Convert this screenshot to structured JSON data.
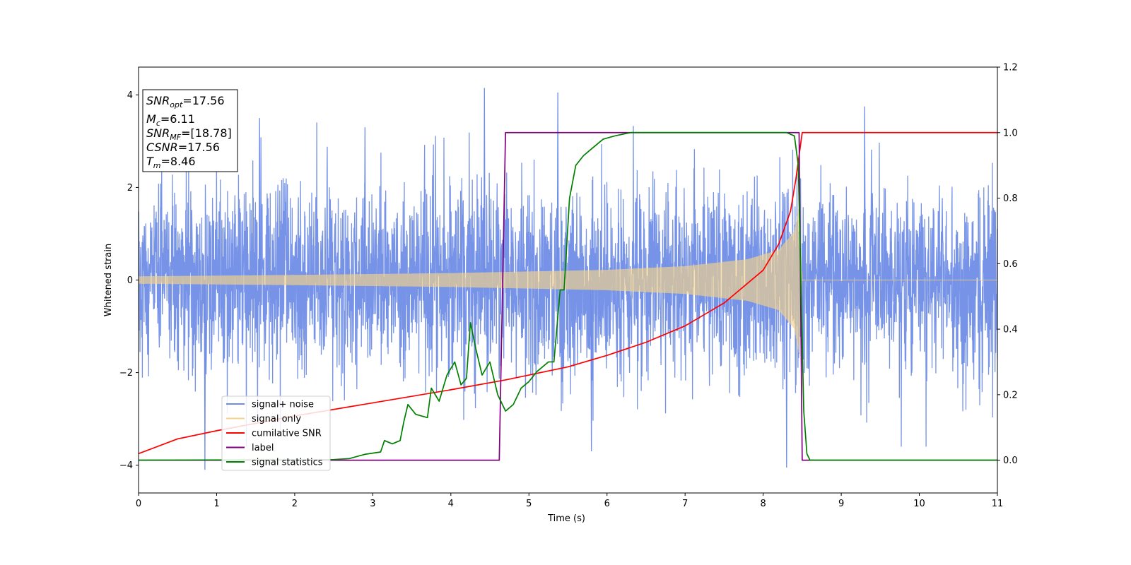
{
  "chart_data": {
    "type": "line",
    "xlabel": "Time (s)",
    "ylabel": "Whitened strain",
    "xlim": [
      0,
      11
    ],
    "ylim": [
      -4.6,
      4.6
    ],
    "y2lim": [
      -0.1,
      1.2
    ],
    "x_ticks": [
      "0",
      "1",
      "2",
      "3",
      "4",
      "5",
      "6",
      "7",
      "8",
      "9",
      "10",
      "11"
    ],
    "y_ticks": [
      "−4",
      "−2",
      "0",
      "2",
      "4"
    ],
    "y2_ticks": [
      "0.0",
      "0.2",
      "0.4",
      "0.6",
      "0.8",
      "1.0",
      "1.2"
    ],
    "legend_position": "lower-left",
    "series": [
      {
        "name": "signal+ noise",
        "axis": "left",
        "color": "#6f8de6",
        "style": "noise",
        "noise_sigma": 1.0,
        "extremes": [
          {
            "x": 0.85,
            "y": -4.1
          },
          {
            "x": 4.43,
            "y": 4.15
          },
          {
            "x": 5.37,
            "y": 4.05
          },
          {
            "x": 5.8,
            "y": -3.7
          },
          {
            "x": 8.3,
            "y": -4.05
          },
          {
            "x": 9.3,
            "y": 3.75
          },
          {
            "x": 2.9,
            "y": 3.3
          },
          {
            "x": 1.55,
            "y": 3.5
          }
        ]
      },
      {
        "name": "signal only",
        "axis": "left",
        "color": "#f5d28a",
        "style": "chirp",
        "envelope": [
          {
            "x": 0,
            "y": 0.08
          },
          {
            "x": 2,
            "y": 0.11
          },
          {
            "x": 4,
            "y": 0.15
          },
          {
            "x": 6,
            "y": 0.22
          },
          {
            "x": 7,
            "y": 0.3
          },
          {
            "x": 7.8,
            "y": 0.45
          },
          {
            "x": 8.2,
            "y": 0.65
          },
          {
            "x": 8.4,
            "y": 1.05
          },
          {
            "x": 8.46,
            "y": 1.6
          },
          {
            "x": 8.5,
            "y": 0.0
          },
          {
            "x": 11,
            "y": 0.0
          }
        ]
      },
      {
        "name": "cumilative SNR",
        "axis": "right",
        "color": "#ff0000",
        "points": [
          [
            0,
            0.02
          ],
          [
            0.5,
            0.065
          ],
          [
            1,
            0.09
          ],
          [
            2,
            0.135
          ],
          [
            3,
            0.175
          ],
          [
            4,
            0.215
          ],
          [
            4.7,
            0.245
          ],
          [
            5,
            0.26
          ],
          [
            5.5,
            0.285
          ],
          [
            6,
            0.32
          ],
          [
            6.5,
            0.36
          ],
          [
            7,
            0.41
          ],
          [
            7.5,
            0.48
          ],
          [
            8,
            0.58
          ],
          [
            8.2,
            0.66
          ],
          [
            8.35,
            0.76
          ],
          [
            8.42,
            0.86
          ],
          [
            8.46,
            0.93
          ],
          [
            8.5,
            1.0
          ],
          [
            11,
            1.0
          ]
        ]
      },
      {
        "name": "label",
        "axis": "right",
        "color": "#800080",
        "points": [
          [
            0,
            0.0
          ],
          [
            4.62,
            0.0
          ],
          [
            4.7,
            1.0
          ],
          [
            8.46,
            1.0
          ],
          [
            8.5,
            0.0
          ],
          [
            11,
            0.0
          ]
        ]
      },
      {
        "name": "signal statistics",
        "axis": "right",
        "color": "#008000",
        "points": [
          [
            0,
            0.0
          ],
          [
            2.5,
            0.002
          ],
          [
            2.7,
            0.005
          ],
          [
            2.9,
            0.018
          ],
          [
            3.1,
            0.025
          ],
          [
            3.15,
            0.06
          ],
          [
            3.25,
            0.05
          ],
          [
            3.35,
            0.06
          ],
          [
            3.4,
            0.12
          ],
          [
            3.45,
            0.17
          ],
          [
            3.55,
            0.14
          ],
          [
            3.7,
            0.13
          ],
          [
            3.75,
            0.22
          ],
          [
            3.85,
            0.18
          ],
          [
            3.95,
            0.26
          ],
          [
            4.05,
            0.3
          ],
          [
            4.13,
            0.23
          ],
          [
            4.2,
            0.25
          ],
          [
            4.25,
            0.42
          ],
          [
            4.32,
            0.34
          ],
          [
            4.4,
            0.26
          ],
          [
            4.5,
            0.3
          ],
          [
            4.6,
            0.2
          ],
          [
            4.7,
            0.15
          ],
          [
            4.8,
            0.17
          ],
          [
            4.9,
            0.22
          ],
          [
            5.0,
            0.24
          ],
          [
            5.1,
            0.27
          ],
          [
            5.25,
            0.3
          ],
          [
            5.32,
            0.3
          ],
          [
            5.4,
            0.52
          ],
          [
            5.45,
            0.52
          ],
          [
            5.52,
            0.8
          ],
          [
            5.6,
            0.9
          ],
          [
            5.7,
            0.93
          ],
          [
            5.8,
            0.95
          ],
          [
            5.95,
            0.98
          ],
          [
            6.1,
            0.99
          ],
          [
            6.3,
            1.0
          ],
          [
            8.3,
            1.0
          ],
          [
            8.4,
            0.99
          ],
          [
            8.45,
            0.9
          ],
          [
            8.52,
            0.15
          ],
          [
            8.56,
            0.02
          ],
          [
            8.6,
            0.0
          ],
          [
            11,
            0.0
          ]
        ]
      }
    ]
  },
  "info_box": {
    "snr_opt_label": "SNR",
    "snr_opt_sub": "opt",
    "snr_opt_value": "=17.56",
    "mc_label": "M",
    "mc_sub": "c",
    "mc_value": "=6.11",
    "snr_mf_label": "SNR",
    "snr_mf_sub": "MF",
    "snr_mf_value": "=[18.78]",
    "csnr_label": "CSNR",
    "csnr_value": "=17.56",
    "tm_label": "T",
    "tm_sub": "m",
    "tm_value": "=8.46"
  }
}
